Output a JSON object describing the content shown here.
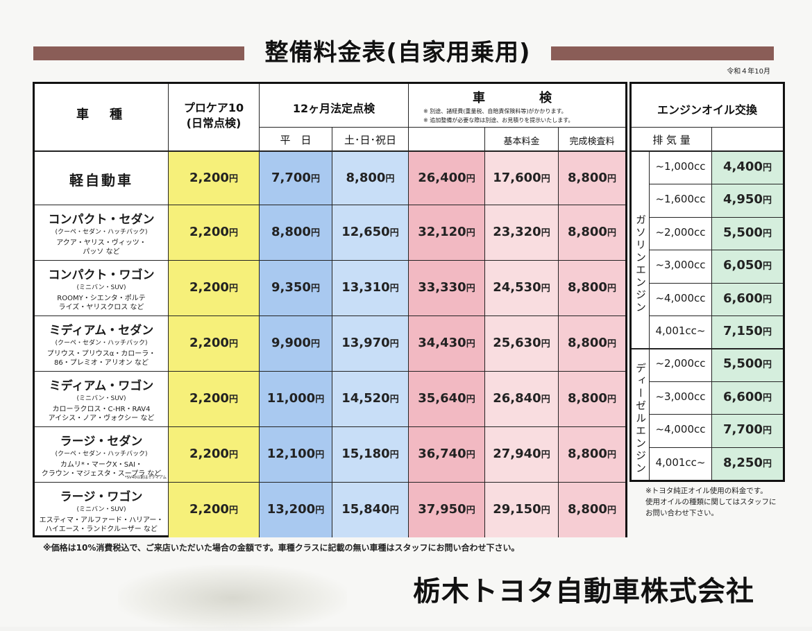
{
  "title": "整備料金表(自家用乗用)",
  "date": "令和４年10月",
  "header": {
    "car_type": "車　種",
    "procare": "プロケア10\n(日常点検)",
    "periodic": "12ヶ月法定点検",
    "weekday": "平　日",
    "weekend": "土･日･祝日",
    "shaken": "車　　検",
    "shaken_note1": "※ 別途、諸経費(重量税、自賠責保険料等)がかかります。",
    "shaken_note2": "※ 追加整備が必要な際は別途、お見積りを提示いたします。",
    "base_fee": "基本料金",
    "completion_fee": "完成検査料",
    "oil_title": "エンジンオイル交換",
    "displacement": "排 気 量",
    "gasoline": "ガソリンエンジン",
    "diesel": "ディーゼルエンジン"
  },
  "rows": [
    {
      "name": "軽自動車",
      "sub": "",
      "ex": "",
      "procare": "2,200",
      "weekday": "7,700",
      "weekend": "8,800",
      "shaken": "26,400",
      "base": "17,600",
      "completion": "8,800"
    },
    {
      "name": "コンパクト・セダン",
      "sub": "(クーペ・セダン・ハッチバック)",
      "ex": "アクア・ヤリス・ヴィッツ・\nパッソ など",
      "procare": "2,200",
      "weekday": "8,800",
      "weekend": "12,650",
      "shaken": "32,120",
      "base": "23,320",
      "completion": "8,800"
    },
    {
      "name": "コンパクト・ワゴン",
      "sub": "(ミニバン・SUV)",
      "ex": "ROOMY・シエンタ・ポルテ\nライズ・ヤリスクロス など",
      "procare": "2,200",
      "weekday": "9,350",
      "weekend": "13,310",
      "shaken": "33,330",
      "base": "24,530",
      "completion": "8,800"
    },
    {
      "name": "ミディアム・セダン",
      "sub": "(クーペ・セダン・ハッチバック)",
      "ex": "プリウス・プリウスα・カローラ・\n86・プレミオ・アリオン など",
      "procare": "2,200",
      "weekday": "9,900",
      "weekend": "13,970",
      "shaken": "34,430",
      "base": "25,630",
      "completion": "8,800"
    },
    {
      "name": "ミディアム・ワゴン",
      "sub": "(ミニバン・SUV)",
      "ex": "カローラクロス・C-HR・RAV4\nアイシス・ノア・ヴォクシー など",
      "procare": "2,200",
      "weekday": "11,000",
      "weekend": "14,520",
      "shaken": "35,640",
      "base": "26,840",
      "completion": "8,800"
    },
    {
      "name": "ラージ・セダン",
      "sub": "(クーペ・セダン・ハッチバック)",
      "ex": "カムリ*・マークX・SAI・\nクラウン・マジェスタ・スープラ など",
      "procare": "2,200",
      "weekday": "12,100",
      "weekend": "15,180",
      "shaken": "36,740",
      "base": "27,940",
      "completion": "8,800"
    },
    {
      "name": "ラージ・ワゴン",
      "sub": "(ミニバン・SUV)",
      "ex": "エスティマ・アルファード・ハリアー・\nハイエース・ランドクルーザー など",
      "procare": "2,200",
      "weekday": "13,200",
      "weekend": "15,840",
      "shaken": "37,950",
      "base": "29,150",
      "completion": "8,800"
    }
  ],
  "row_note": "*SV40以前はミディアム",
  "yen": "円",
  "oil": {
    "gasoline": [
      {
        "cc": "~1,000cc",
        "price": "4,400"
      },
      {
        "cc": "~1,600cc",
        "price": "4,950"
      },
      {
        "cc": "~2,000cc",
        "price": "5,500"
      },
      {
        "cc": "~3,000cc",
        "price": "6,050"
      },
      {
        "cc": "~4,000cc",
        "price": "6,600"
      },
      {
        "cc": "4,001cc~",
        "price": "7,150"
      }
    ],
    "diesel": [
      {
        "cc": "~2,000cc",
        "price": "5,500"
      },
      {
        "cc": "~3,000cc",
        "price": "6,600"
      },
      {
        "cc": "~4,000cc",
        "price": "7,700"
      },
      {
        "cc": "4,001cc~",
        "price": "8,250"
      }
    ]
  },
  "footnote": "※価格は10%消費税込で、ご来店いただいた場合の金額です。車種クラスに記載の無い車種はスタッフにお問い合わせ下さい。",
  "oil_note": "※トヨタ純正オイル使用の料金です。\n使用オイルの種類に関してはスタッフに\nお問い合わせ下さい。",
  "company": "栃木トヨタ自動車株式会社",
  "colors": {
    "title_bar": "#8a5d57",
    "procare_fill": "#f6f07a",
    "periodic_fill": "#c5dbf5",
    "periodic_fill_dark": "#a9c9f0",
    "shaken_fill": "#f6c9cf",
    "shaken_fill_light": "#f9dde0",
    "oil_fill": "#d5eedd"
  }
}
